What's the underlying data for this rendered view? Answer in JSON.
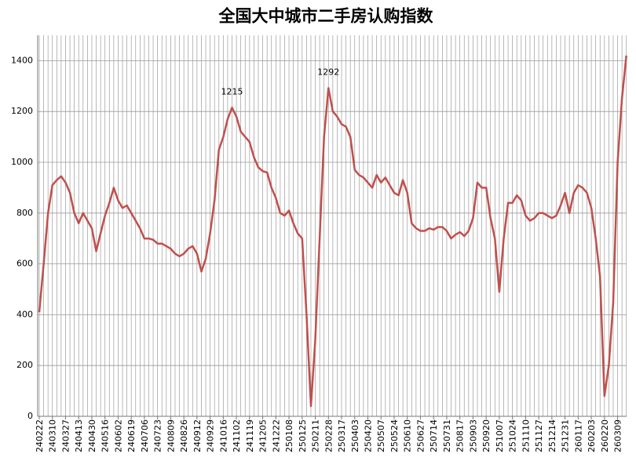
{
  "chart_data": {
    "type": "line",
    "title": "全国大中城市二手房认购指数",
    "x": [
      "240222",
      null,
      null,
      "240310",
      null,
      null,
      "240327",
      null,
      null,
      "240413",
      null,
      null,
      "240430",
      null,
      null,
      "240516",
      null,
      null,
      "240602",
      null,
      null,
      "240619",
      null,
      null,
      "240706",
      null,
      null,
      "240723",
      null,
      null,
      "240809",
      null,
      null,
      "240826",
      null,
      null,
      "240912",
      null,
      null,
      "240929",
      null,
      null,
      "241016",
      null,
      null,
      "241102",
      null,
      null,
      "241119",
      null,
      null,
      "241205",
      null,
      null,
      "241222",
      null,
      null,
      "250108",
      null,
      null,
      "250125",
      null,
      null,
      "250211",
      null,
      null,
      "250228",
      null,
      null,
      "250317",
      null,
      null,
      "250403",
      null,
      null,
      "250420",
      null,
      null,
      "250507",
      null,
      null,
      "250524",
      null,
      null,
      "250610",
      null,
      null,
      "250627",
      null,
      null,
      "250714",
      null,
      null,
      "250731",
      null,
      null,
      "250817",
      null,
      null,
      "250903",
      null,
      null,
      "250920",
      null,
      null,
      "251007",
      null,
      null,
      "251024",
      null,
      null,
      "251110",
      null,
      null,
      "251127",
      null,
      null,
      "251214",
      null,
      null,
      "251231",
      null,
      null,
      "260117",
      null,
      null,
      "260203",
      null,
      null,
      "260220",
      null,
      null,
      "260309",
      null,
      null
    ],
    "values": [
      410,
      600,
      800,
      910,
      930,
      945,
      920,
      880,
      800,
      760,
      800,
      770,
      740,
      650,
      720,
      790,
      840,
      900,
      850,
      820,
      830,
      800,
      770,
      740,
      700,
      700,
      695,
      680,
      680,
      670,
      660,
      640,
      630,
      640,
      660,
      670,
      640,
      570,
      620,
      720,
      850,
      1050,
      1100,
      1170,
      1215,
      1180,
      1120,
      1100,
      1080,
      1020,
      980,
      965,
      960,
      900,
      860,
      800,
      790,
      810,
      760,
      720,
      700,
      400,
      40,
      300,
      700,
      1100,
      1292,
      1200,
      1180,
      1150,
      1140,
      1100,
      970,
      950,
      940,
      920,
      900,
      950,
      920,
      940,
      910,
      880,
      870,
      930,
      880,
      760,
      740,
      730,
      730,
      740,
      735,
      745,
      745,
      730,
      700,
      715,
      725,
      710,
      730,
      780,
      920,
      900,
      900,
      780,
      700,
      490,
      700,
      840,
      840,
      870,
      850,
      790,
      770,
      780,
      800,
      800,
      790,
      780,
      790,
      830,
      880,
      800,
      880,
      910,
      900,
      880,
      820,
      700,
      550,
      80,
      200,
      450,
      1000,
      1250,
      1420
    ],
    "value_labels": [
      null,
      null,
      null,
      null,
      null,
      null,
      null,
      null,
      null,
      null,
      null,
      null,
      null,
      null,
      null,
      null,
      null,
      null,
      null,
      null,
      null,
      null,
      null,
      null,
      null,
      null,
      null,
      null,
      null,
      null,
      null,
      null,
      null,
      null,
      null,
      null,
      null,
      null,
      null,
      null,
      null,
      null,
      null,
      null,
      "1215",
      null,
      null,
      null,
      null,
      null,
      null,
      null,
      null,
      null,
      null,
      null,
      null,
      null,
      null,
      null,
      null,
      null,
      null,
      null,
      null,
      null,
      "1292",
      null,
      null,
      null,
      null,
      null,
      null,
      null,
      null,
      null,
      null,
      null,
      null,
      null,
      null,
      null,
      null,
      null,
      null,
      null,
      null,
      null,
      null,
      null,
      null,
      null,
      null,
      null,
      null,
      null,
      null,
      null,
      null,
      null,
      null,
      null,
      null,
      null,
      null,
      null,
      null,
      null,
      null,
      null,
      null,
      null,
      null,
      null,
      null,
      null,
      null,
      null,
      null,
      null,
      null,
      null,
      null,
      null,
      null,
      null,
      null,
      null,
      null,
      null,
      null,
      null,
      null,
      null,
      null
    ],
    "color": "#c0504d",
    "ylim": [
      0,
      1500
    ],
    "yticks": [
      0,
      200,
      400,
      600,
      800,
      1000,
      1200,
      1400
    ],
    "grid": true
  }
}
